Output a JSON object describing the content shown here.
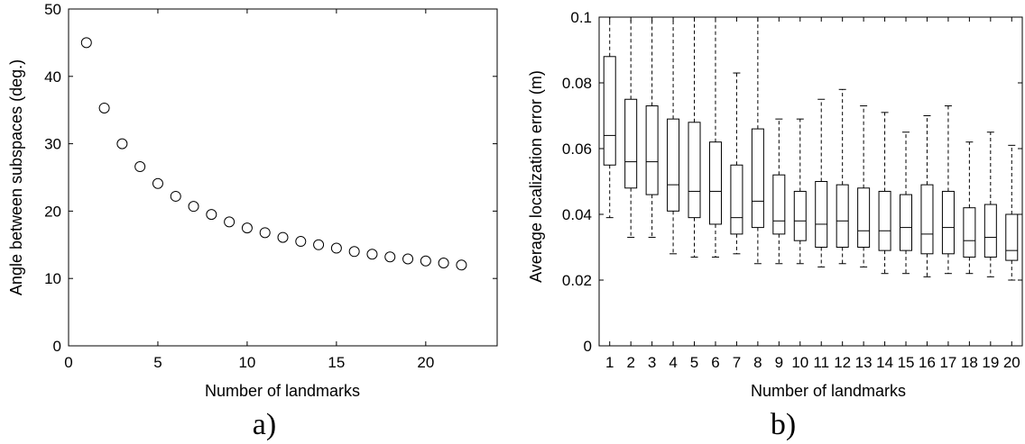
{
  "chart_data": [
    {
      "type": "scatter",
      "panel_label": "a)",
      "xlabel": "Number of landmarks",
      "ylabel": "Angle between subspaces (deg.)",
      "xlim": [
        0,
        24
      ],
      "ylim": [
        0,
        50
      ],
      "xticks": [
        0,
        5,
        10,
        15,
        20
      ],
      "yticks": [
        0,
        10,
        20,
        30,
        40,
        50
      ],
      "marker": "open-circle",
      "grid": false,
      "x": [
        1,
        2,
        3,
        4,
        5,
        6,
        7,
        8,
        9,
        10,
        11,
        12,
        13,
        14,
        15,
        16,
        17,
        18,
        19,
        20,
        21,
        22
      ],
      "y": [
        45.0,
        35.3,
        30.0,
        26.6,
        24.1,
        22.2,
        20.7,
        19.5,
        18.4,
        17.5,
        16.8,
        16.1,
        15.5,
        15.0,
        14.5,
        14.0,
        13.6,
        13.2,
        12.9,
        12.6,
        12.3,
        12.0
      ]
    },
    {
      "type": "box",
      "panel_label": "b)",
      "xlabel": "Number of landmarks",
      "ylabel": "Average localization error (m)",
      "ylim": [
        0,
        0.1
      ],
      "yticks": [
        "0",
        "0.02",
        "0.04",
        "0.06",
        "0.08",
        "0.1"
      ],
      "grid": false,
      "categories": [
        "1",
        "2",
        "3",
        "4",
        "5",
        "6",
        "7",
        "8",
        "9",
        "10",
        "11",
        "12",
        "13",
        "14",
        "15",
        "16",
        "17",
        "18",
        "19",
        "20"
      ],
      "q1": [
        0.055,
        0.048,
        0.046,
        0.041,
        0.039,
        0.037,
        0.034,
        0.036,
        0.034,
        0.032,
        0.03,
        0.03,
        0.03,
        0.029,
        0.029,
        0.028,
        0.028,
        0.027,
        0.027,
        0.026
      ],
      "median": [
        0.064,
        0.056,
        0.056,
        0.049,
        0.047,
        0.047,
        0.039,
        0.044,
        0.038,
        0.038,
        0.037,
        0.038,
        0.035,
        0.035,
        0.036,
        0.034,
        0.036,
        0.032,
        0.033,
        0.029
      ],
      "q3": [
        0.088,
        0.075,
        0.073,
        0.069,
        0.068,
        0.062,
        0.055,
        0.066,
        0.052,
        0.047,
        0.05,
        0.049,
        0.048,
        0.047,
        0.046,
        0.049,
        0.047,
        0.042,
        0.043,
        0.04
      ],
      "whisker_low": [
        0.039,
        0.033,
        0.033,
        0.028,
        0.027,
        0.027,
        0.028,
        0.025,
        0.025,
        0.025,
        0.024,
        0.025,
        0.024,
        0.022,
        0.022,
        0.021,
        0.022,
        0.022,
        0.021,
        0.02
      ],
      "whisker_high": [
        0.1,
        0.1,
        0.1,
        0.1,
        0.1,
        0.1,
        0.083,
        0.1,
        0.069,
        0.069,
        0.075,
        0.078,
        0.073,
        0.071,
        0.065,
        0.07,
        0.073,
        0.062,
        0.065,
        0.061
      ]
    }
  ]
}
